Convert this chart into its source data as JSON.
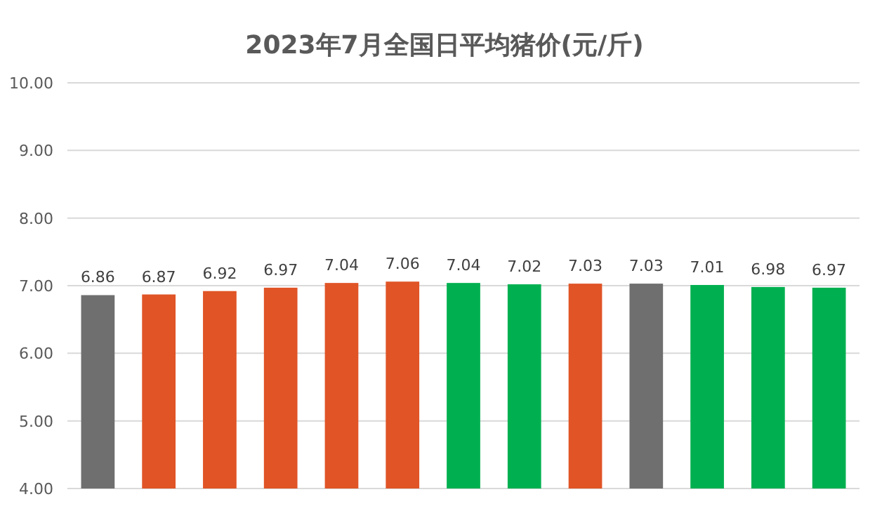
{
  "chart_data": {
    "type": "bar",
    "title": "2023年7月全国日平均猪价(元/斤)",
    "categories": [
      null,
      null,
      null,
      null,
      null,
      null,
      null,
      null,
      null,
      null,
      null,
      null,
      null
    ],
    "values": [
      6.86,
      6.87,
      6.92,
      6.97,
      7.04,
      7.06,
      7.04,
      7.02,
      7.03,
      7.03,
      7.01,
      6.98,
      6.97
    ],
    "colors": [
      "#6f6f6f",
      "#e05426",
      "#e05426",
      "#e05426",
      "#e05426",
      "#e05426",
      "#00b050",
      "#00b050",
      "#e05426",
      "#6f6f6f",
      "#00b050",
      "#00b050",
      "#00b050"
    ],
    "ylim": [
      4,
      10
    ],
    "yticks": [
      {
        "value": 4,
        "label": "4.00"
      },
      {
        "value": 5,
        "label": "5.00"
      },
      {
        "value": 6,
        "label": "6.00"
      },
      {
        "value": 7,
        "label": "7.00"
      },
      {
        "value": 8,
        "label": "8.00"
      },
      {
        "value": 9,
        "label": "9.00"
      },
      {
        "value": 10,
        "label": "10.00"
      }
    ],
    "grid": "y",
    "data_labels": true
  }
}
